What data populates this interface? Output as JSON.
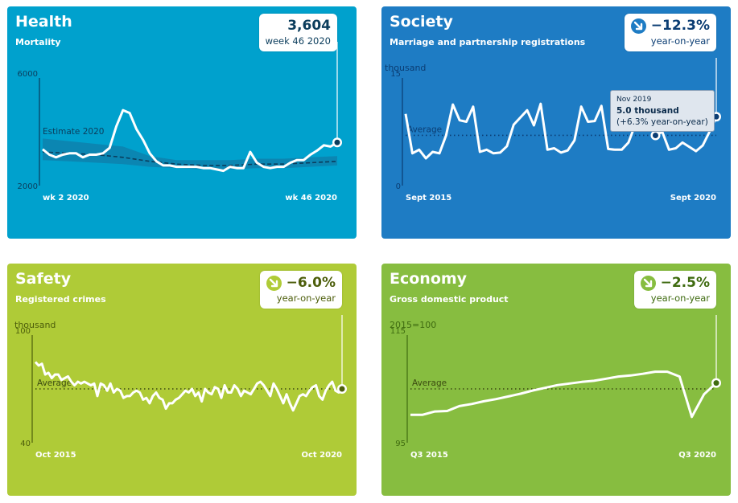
{
  "colors": {
    "health_bg": "#00a1cd",
    "society_bg": "#1e7cc4",
    "safety_bg": "#afcb37",
    "economy_bg": "#87bd40",
    "health_text": "#0b3d5c",
    "society_text": "#0b3d73",
    "safety_text": "#4d5e0b",
    "economy_text": "#3f6b10",
    "health_band": "#0f7ea8",
    "health_estimate": "#0b3d5c",
    "average_dots_society": "#0b3d73",
    "average_dots_green": "#3a4a10"
  },
  "panels": {
    "health": {
      "title": "Health",
      "subtitle": "Mortality",
      "kpi_value": "3,604",
      "kpi_label": "week 46 2020"
    },
    "society": {
      "title": "Society",
      "subtitle": "Marriage and partnership registrations",
      "kpi_value": "−12.3%",
      "kpi_label": "year-on-year",
      "kpi_icon": "arrow-down-right-icon"
    },
    "safety": {
      "title": "Safety",
      "subtitle": "Registered crimes",
      "kpi_value": "−6.0%",
      "kpi_label": "year-on-year",
      "kpi_icon": "arrow-down-right-icon"
    },
    "economy": {
      "title": "Economy",
      "subtitle": "Gross domestic product",
      "kpi_value": "−2.5%",
      "kpi_label": "year-on-year",
      "kpi_icon": "arrow-down-right-icon"
    }
  },
  "tooltip": {
    "date": "Nov 2019",
    "value": "5.0 thousand",
    "change": "(+6.3% year-on-year)"
  },
  "chart_data": [
    {
      "id": "health",
      "type": "line",
      "title": "Mortality",
      "ylim": [
        2000,
        6000
      ],
      "yticks": [
        "6000",
        "2000"
      ],
      "xlim": [
        2,
        46
      ],
      "xticks": [
        "wk 2 2020",
        "wk 46 2020"
      ],
      "band_label": "Estimate 2020",
      "series": [
        {
          "name": "Mortality",
          "x": [
            2,
            3,
            4,
            5,
            6,
            7,
            8,
            9,
            10,
            11,
            12,
            13,
            14,
            15,
            16,
            17,
            18,
            19,
            20,
            21,
            22,
            23,
            24,
            25,
            26,
            27,
            28,
            29,
            30,
            31,
            32,
            33,
            34,
            35,
            36,
            37,
            38,
            39,
            40,
            41,
            42,
            43,
            44,
            45,
            46
          ],
          "values": [
            3350,
            3150,
            3050,
            3150,
            3200,
            3200,
            3050,
            3150,
            3150,
            3200,
            3400,
            4200,
            4800,
            4700,
            4100,
            3700,
            3200,
            2900,
            2750,
            2750,
            2700,
            2700,
            2700,
            2700,
            2650,
            2650,
            2600,
            2550,
            2700,
            2650,
            2650,
            3250,
            2850,
            2700,
            2650,
            2700,
            2700,
            2850,
            2950,
            2950,
            3150,
            3300,
            3500,
            3450,
            3604
          ]
        },
        {
          "name": "Estimate 2020",
          "x": [
            2,
            6,
            10,
            14,
            18,
            22,
            26,
            30,
            34,
            38,
            42,
            46
          ],
          "values": [
            3250,
            3200,
            3150,
            3050,
            2900,
            2800,
            2750,
            2750,
            2800,
            2800,
            2850,
            2900
          ]
        },
        {
          "name": "Estimate band low",
          "x": [
            2,
            6,
            10,
            14,
            18,
            22,
            26,
            30,
            34,
            38,
            42,
            46
          ],
          "values": [
            2950,
            2900,
            2850,
            2800,
            2700,
            2650,
            2600,
            2600,
            2650,
            2650,
            2700,
            2750
          ]
        },
        {
          "name": "Estimate band high",
          "x": [
            2,
            6,
            10,
            14,
            18,
            22,
            26,
            30,
            34,
            38,
            42,
            46
          ],
          "values": [
            3750,
            3650,
            3550,
            3450,
            3100,
            2950,
            2950,
            2950,
            3000,
            3000,
            3050,
            3100
          ]
        }
      ]
    },
    {
      "id": "society",
      "type": "line",
      "title": "Marriage and partnership registrations",
      "ylabel": "thousand",
      "ylim": [
        0,
        15
      ],
      "yticks": [
        "15",
        "0"
      ],
      "xticks": [
        "Sept 2015",
        "Sept 2020"
      ],
      "average": 7.0,
      "average_label": "Average",
      "values": [
        10.0,
        4.5,
        5.0,
        3.8,
        4.7,
        4.5,
        7.0,
        11.3,
        9.1,
        8.9,
        11.0,
        4.7,
        5.0,
        4.5,
        4.6,
        5.5,
        8.5,
        9.5,
        10.5,
        8.4,
        11.4,
        5.0,
        5.2,
        4.6,
        4.9,
        6.3,
        11.0,
        8.9,
        9.0,
        11.1,
        5.1,
        5.0,
        5.0,
        6.0,
        8.5,
        9.0,
        10.0,
        7.0,
        7.5,
        5.0,
        5.2,
        6.0,
        5.4,
        4.8,
        5.6,
        7.5,
        9.6
      ]
    },
    {
      "id": "safety",
      "type": "line",
      "title": "Registered crimes",
      "ylabel": "thousand",
      "ylim": [
        40,
        100
      ],
      "yticks": [
        "100",
        "40"
      ],
      "xticks": [
        "Oct 2015",
        "Oct 2020"
      ],
      "average": 70,
      "average_label": "Average",
      "values": [
        85,
        83,
        84,
        78,
        79,
        76,
        78,
        78,
        75,
        76,
        77,
        74,
        72,
        74,
        73,
        74,
        73,
        72,
        73,
        66,
        73,
        72,
        69,
        73,
        68,
        70,
        69,
        65,
        66,
        66,
        68,
        69,
        68,
        64,
        65,
        62,
        66,
        68,
        65,
        64,
        59,
        62,
        62,
        64,
        65,
        67,
        69,
        68,
        70,
        66,
        68,
        63,
        70,
        68,
        67,
        71,
        70,
        65,
        72,
        68,
        68,
        72,
        70,
        66,
        69,
        68,
        67,
        70,
        73,
        74,
        72,
        69,
        66,
        73,
        70,
        66,
        62,
        67,
        62,
        58,
        62,
        66,
        67,
        66,
        69,
        71,
        72,
        66,
        64,
        69,
        72,
        74,
        69,
        68,
        70
      ]
    },
    {
      "id": "economy",
      "type": "line",
      "title": "Gross domestic product",
      "ylabel": "2015=100",
      "ylim": [
        95,
        115
      ],
      "yticks": [
        "115",
        "95"
      ],
      "xticks": [
        "Q3 2015",
        "Q3 2020"
      ],
      "average": 105,
      "average_label": "Average",
      "values": [
        100.2,
        100.2,
        100.8,
        100.9,
        101.8,
        102.2,
        102.7,
        103.1,
        103.6,
        104.1,
        104.7,
        105.2,
        105.7,
        106.0,
        106.3,
        106.5,
        106.9,
        107.3,
        107.5,
        107.8,
        108.2,
        108.2,
        107.3,
        99.8,
        104.0,
        106.1
      ]
    }
  ]
}
